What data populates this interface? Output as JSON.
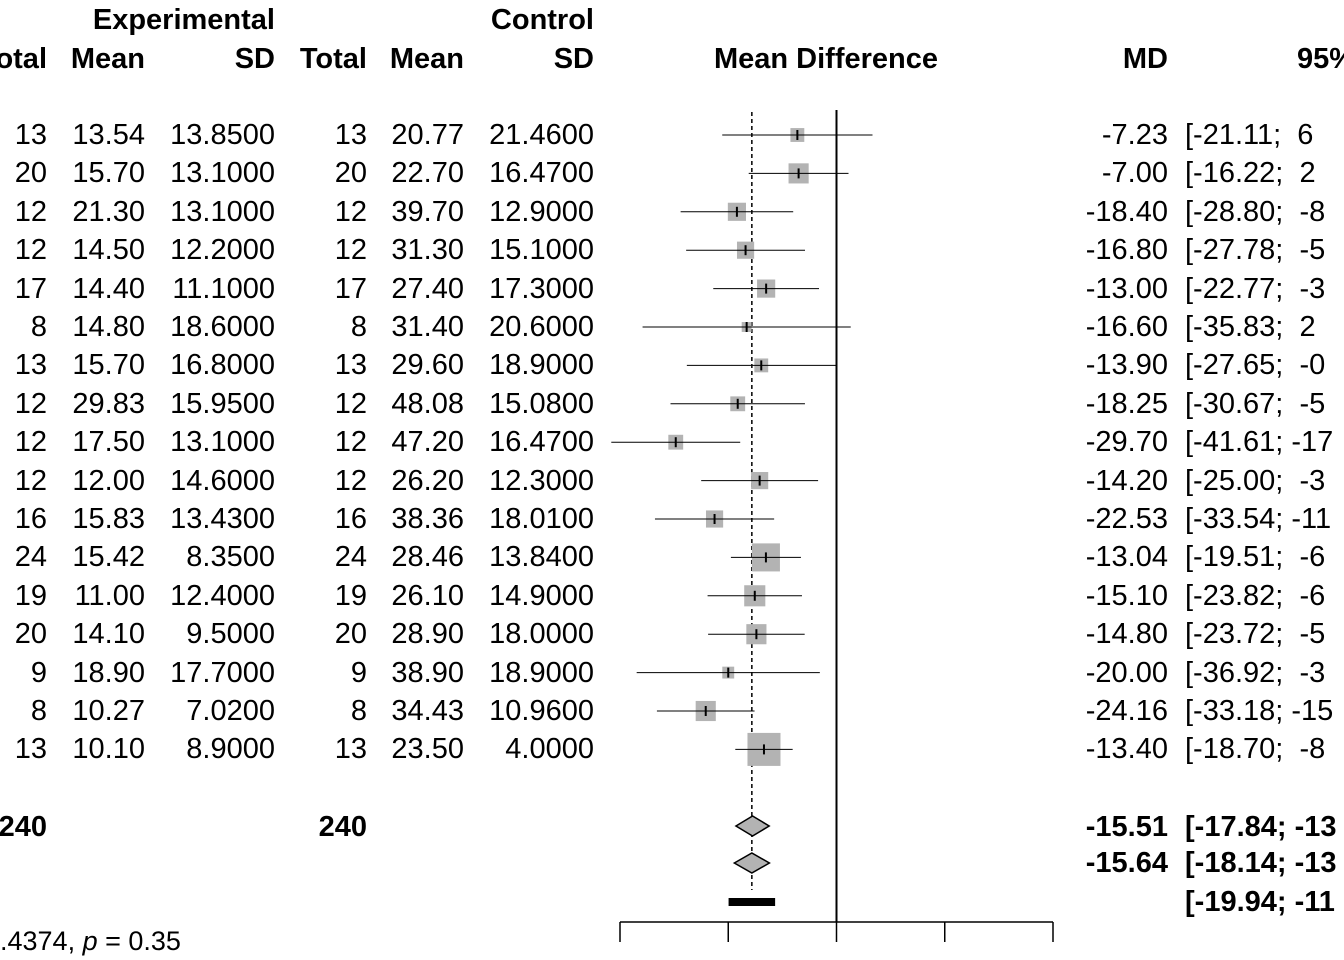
{
  "headers": {
    "experimental": "Experimental",
    "control": "Control",
    "exp_total": "otal",
    "exp_mean": "Mean",
    "exp_sd": "SD",
    "ctl_total": "Total",
    "ctl_mean": "Mean",
    "ctl_sd": "SD",
    "plot": "Mean Difference",
    "md": "MD",
    "ci": "95%"
  },
  "rows": [
    {
      "et": "13",
      "em": "13.54",
      "esd": "13.8500",
      "ct": "13",
      "cm": "20.77",
      "csd": "21.4600",
      "md": "-7.23",
      "ci": "[-21.11;  6"
    },
    {
      "et": "20",
      "em": "15.70",
      "esd": "13.1000",
      "ct": "20",
      "cm": "22.70",
      "csd": "16.4700",
      "md": "-7.00",
      "ci": "[-16.22;  2"
    },
    {
      "et": "12",
      "em": "21.30",
      "esd": "13.1000",
      "ct": "12",
      "cm": "39.70",
      "csd": "12.9000",
      "md": "-18.40",
      "ci": "[-28.80;  -8"
    },
    {
      "et": "12",
      "em": "14.50",
      "esd": "12.2000",
      "ct": "12",
      "cm": "31.30",
      "csd": "15.1000",
      "md": "-16.80",
      "ci": "[-27.78;  -5"
    },
    {
      "et": "17",
      "em": "14.40",
      "esd": "11.1000",
      "ct": "17",
      "cm": "27.40",
      "csd": "17.3000",
      "md": "-13.00",
      "ci": "[-22.77;  -3"
    },
    {
      "et": "8",
      "em": "14.80",
      "esd": "18.6000",
      "ct": "8",
      "cm": "31.40",
      "csd": "20.6000",
      "md": "-16.60",
      "ci": "[-35.83;  2"
    },
    {
      "et": "13",
      "em": "15.70",
      "esd": "16.8000",
      "ct": "13",
      "cm": "29.60",
      "csd": "18.9000",
      "md": "-13.90",
      "ci": "[-27.65;  -0"
    },
    {
      "et": "12",
      "em": "29.83",
      "esd": "15.9500",
      "ct": "12",
      "cm": "48.08",
      "csd": "15.0800",
      "md": "-18.25",
      "ci": "[-30.67;  -5"
    },
    {
      "et": "12",
      "em": "17.50",
      "esd": "13.1000",
      "ct": "12",
      "cm": "47.20",
      "csd": "16.4700",
      "md": "-29.70",
      "ci": "[-41.61; -17"
    },
    {
      "et": "12",
      "em": "12.00",
      "esd": "14.6000",
      "ct": "12",
      "cm": "26.20",
      "csd": "12.3000",
      "md": "-14.20",
      "ci": "[-25.00;  -3"
    },
    {
      "et": "16",
      "em": "15.83",
      "esd": "13.4300",
      "ct": "16",
      "cm": "38.36",
      "csd": "18.0100",
      "md": "-22.53",
      "ci": "[-33.54; -11"
    },
    {
      "et": "24",
      "em": "15.42",
      "esd": "8.3500",
      "ct": "24",
      "cm": "28.46",
      "csd": "13.8400",
      "md": "-13.04",
      "ci": "[-19.51;  -6"
    },
    {
      "et": "19",
      "em": "11.00",
      "esd": "12.4000",
      "ct": "19",
      "cm": "26.10",
      "csd": "14.9000",
      "md": "-15.10",
      "ci": "[-23.82;  -6"
    },
    {
      "et": "20",
      "em": "14.10",
      "esd": "9.5000",
      "ct": "20",
      "cm": "28.90",
      "csd": "18.0000",
      "md": "-14.80",
      "ci": "[-23.72;  -5"
    },
    {
      "et": "9",
      "em": "18.90",
      "esd": "17.7000",
      "ct": "9",
      "cm": "38.90",
      "csd": "18.9000",
      "md": "-20.00",
      "ci": "[-36.92;  -3"
    },
    {
      "et": "8",
      "em": "10.27",
      "esd": "7.0200",
      "ct": "8",
      "cm": "34.43",
      "csd": "10.9600",
      "md": "-24.16",
      "ci": "[-33.18; -15"
    },
    {
      "et": "13",
      "em": "10.10",
      "esd": "8.9000",
      "ct": "13",
      "cm": "23.50",
      "csd": "4.0000",
      "md": "-13.40",
      "ci": "[-18.70;  -8"
    }
  ],
  "summary": {
    "exp_total": "240",
    "ctl_total": "240",
    "common_md": "-15.51",
    "common_ci": "[-17.84; -13",
    "random_md": "-15.64",
    "random_ci": "[-18.14; -13",
    "prediction_ci": "[-19.94; -11",
    "heterogeneity_prefix": ".4374, ",
    "heterogeneity_p": "p",
    "heterogeneity_suffix": " = 0.35"
  },
  "chart_data": {
    "type": "forest",
    "xlim": [
      -40,
      40
    ],
    "x_ticks": [
      -40,
      -20,
      0,
      20,
      40
    ],
    "reference_line": 0,
    "colors": {
      "square": "#b3b3b3",
      "diamond": "#b3b3b3",
      "line": "#000000"
    },
    "studies": [
      {
        "md": -7.23,
        "lower": -21.11,
        "upper": 6.65,
        "relative_weight": 0.42
      },
      {
        "md": -7.0,
        "lower": -16.22,
        "upper": 2.22,
        "relative_weight": 0.61
      },
      {
        "md": -18.4,
        "lower": -28.8,
        "upper": -8.0,
        "relative_weight": 0.55
      },
      {
        "md": -16.8,
        "lower": -27.78,
        "upper": -5.82,
        "relative_weight": 0.52
      },
      {
        "md": -13.0,
        "lower": -22.77,
        "upper": -3.23,
        "relative_weight": 0.55
      },
      {
        "md": -16.6,
        "lower": -35.83,
        "upper": 2.63,
        "relative_weight": 0.3
      },
      {
        "md": -13.9,
        "lower": -27.65,
        "upper": -0.15,
        "relative_weight": 0.42
      },
      {
        "md": -18.25,
        "lower": -30.67,
        "upper": -5.83,
        "relative_weight": 0.45
      },
      {
        "md": -29.7,
        "lower": -41.61,
        "upper": -17.79,
        "relative_weight": 0.45
      },
      {
        "md": -14.2,
        "lower": -25.0,
        "upper": -3.4,
        "relative_weight": 0.52
      },
      {
        "md": -22.53,
        "lower": -33.54,
        "upper": -11.52,
        "relative_weight": 0.52
      },
      {
        "md": -13.04,
        "lower": -19.51,
        "upper": -6.57,
        "relative_weight": 0.85
      },
      {
        "md": -15.1,
        "lower": -23.82,
        "upper": -6.38,
        "relative_weight": 0.64
      },
      {
        "md": -14.8,
        "lower": -23.72,
        "upper": -5.88,
        "relative_weight": 0.61
      },
      {
        "md": -20.0,
        "lower": -36.92,
        "upper": -3.08,
        "relative_weight": 0.36
      },
      {
        "md": -24.16,
        "lower": -33.18,
        "upper": -15.14,
        "relative_weight": 0.61
      },
      {
        "md": -13.4,
        "lower": -18.7,
        "upper": -8.1,
        "relative_weight": 1.0
      }
    ],
    "common_effect": {
      "md": -15.51,
      "lower": -17.84,
      "upper": -13.18
    },
    "random_effects": {
      "md": -15.64,
      "lower": -18.14,
      "upper": -13.14
    },
    "prediction_interval": {
      "lower": -19.94,
      "upper": -11.34
    }
  }
}
